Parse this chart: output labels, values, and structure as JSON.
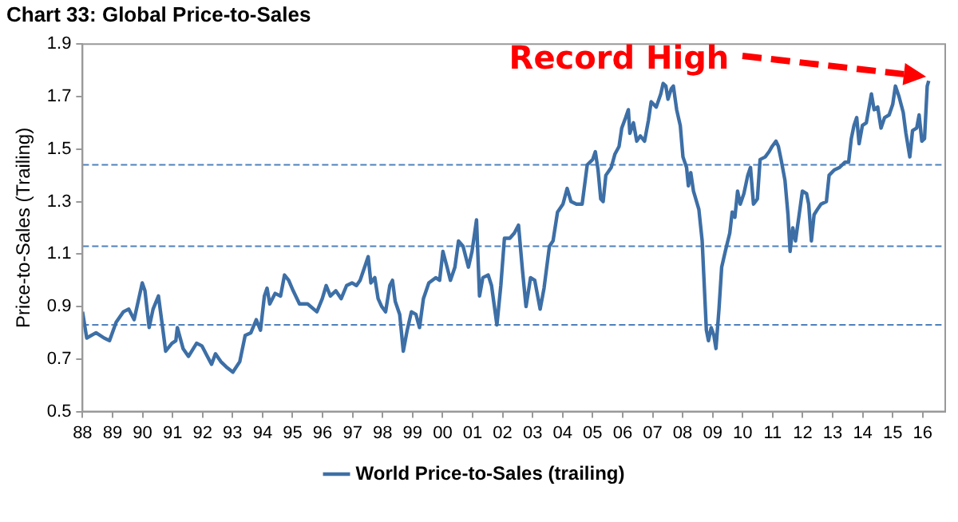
{
  "chart_data": {
    "type": "line",
    "title": "Chart 33: Global Price-to-Sales",
    "ylabel": "Price-to-Sales (Trailing)",
    "x": [
      1988.0,
      1988.14,
      1988.45,
      1988.72,
      1988.9,
      1989.12,
      1989.36,
      1989.54,
      1989.72,
      1989.99,
      1990.08,
      1990.22,
      1990.35,
      1990.53,
      1990.68,
      1990.77,
      1990.98,
      1991.11,
      1991.16,
      1991.35,
      1991.53,
      1991.8,
      1991.98,
      1992.16,
      1992.3,
      1992.43,
      1992.61,
      1992.79,
      1993.01,
      1993.24,
      1993.42,
      1993.61,
      1993.79,
      1993.93,
      1994.06,
      1994.15,
      1994.24,
      1994.42,
      1994.6,
      1994.73,
      1994.87,
      1995.02,
      1995.23,
      1995.5,
      1995.81,
      1995.99,
      1996.12,
      1996.26,
      1996.44,
      1996.62,
      1996.8,
      1996.98,
      1997.13,
      1997.25,
      1997.43,
      1997.52,
      1997.61,
      1997.74,
      1997.85,
      1997.97,
      1998.1,
      1998.24,
      1998.33,
      1998.42,
      1998.57,
      1998.69,
      1998.82,
      1998.96,
      1999.11,
      1999.23,
      1999.36,
      1999.54,
      1999.77,
      1999.9,
      2000.01,
      2000.15,
      2000.26,
      2000.41,
      2000.53,
      2000.68,
      2000.86,
      2000.98,
      2001.13,
      2001.23,
      2001.34,
      2001.52,
      2001.63,
      2001.81,
      2001.94,
      2002.06,
      2002.24,
      2002.39,
      2002.53,
      2002.66,
      2002.78,
      2002.93,
      2003.07,
      2003.25,
      2003.38,
      2003.56,
      2003.68,
      2003.83,
      2004.01,
      2004.15,
      2004.28,
      2004.46,
      2004.65,
      2004.82,
      2005.0,
      2005.09,
      2005.18,
      2005.27,
      2005.35,
      2005.44,
      2005.62,
      2005.74,
      2005.88,
      2005.97,
      2006.1,
      2006.19,
      2006.24,
      2006.36,
      2006.47,
      2006.59,
      2006.73,
      2006.86,
      2006.95,
      2007.12,
      2007.27,
      2007.35,
      2007.44,
      2007.51,
      2007.62,
      2007.69,
      2007.8,
      2007.92,
      2008.01,
      2008.13,
      2008.19,
      2008.27,
      2008.36,
      2008.54,
      2008.65,
      2008.72,
      2008.79,
      2008.86,
      2008.95,
      2009.04,
      2009.11,
      2009.21,
      2009.3,
      2009.42,
      2009.57,
      2009.65,
      2009.74,
      2009.83,
      2009.92,
      2010.04,
      2010.17,
      2010.26,
      2010.36,
      2010.49,
      2010.58,
      2010.75,
      2010.88,
      2010.98,
      2011.11,
      2011.19,
      2011.28,
      2011.41,
      2011.51,
      2011.58,
      2011.67,
      2011.76,
      2011.87,
      2011.99,
      2012.13,
      2012.2,
      2012.29,
      2012.38,
      2012.49,
      2012.61,
      2012.79,
      2012.88,
      2013.05,
      2013.23,
      2013.41,
      2013.53,
      2013.62,
      2013.71,
      2013.8,
      2013.88,
      2013.99,
      2014.12,
      2014.29,
      2014.38,
      2014.5,
      2014.61,
      2014.73,
      2014.88,
      2015.0,
      2015.09,
      2015.21,
      2015.35,
      2015.44,
      2015.57,
      2015.66,
      2015.8,
      2015.88,
      2015.97,
      2016.06,
      2016.15,
      2016.2
    ],
    "series": [
      {
        "name": "World Price-to-Sales (trailing)",
        "color": "#3d6fa6",
        "values": [
          0.88,
          0.78,
          0.8,
          0.78,
          0.77,
          0.84,
          0.88,
          0.89,
          0.85,
          0.99,
          0.96,
          0.82,
          0.89,
          0.94,
          0.81,
          0.73,
          0.76,
          0.77,
          0.82,
          0.74,
          0.71,
          0.76,
          0.75,
          0.71,
          0.68,
          0.72,
          0.69,
          0.67,
          0.65,
          0.69,
          0.79,
          0.8,
          0.85,
          0.81,
          0.94,
          0.97,
          0.91,
          0.95,
          0.94,
          1.02,
          1.0,
          0.96,
          0.91,
          0.91,
          0.88,
          0.93,
          0.98,
          0.94,
          0.96,
          0.93,
          0.98,
          0.99,
          0.98,
          1.0,
          1.06,
          1.09,
          0.99,
          1.01,
          0.93,
          0.9,
          0.88,
          0.98,
          1.0,
          0.92,
          0.87,
          0.73,
          0.81,
          0.88,
          0.87,
          0.82,
          0.93,
          0.99,
          1.01,
          1.0,
          1.11,
          1.05,
          1.0,
          1.05,
          1.15,
          1.13,
          1.05,
          1.11,
          1.23,
          0.94,
          1.01,
          1.02,
          0.98,
          0.83,
          0.98,
          1.16,
          1.16,
          1.18,
          1.21,
          1.04,
          0.9,
          1.01,
          1.0,
          0.89,
          0.97,
          1.13,
          1.15,
          1.26,
          1.29,
          1.35,
          1.3,
          1.29,
          1.29,
          1.44,
          1.46,
          1.49,
          1.42,
          1.31,
          1.3,
          1.4,
          1.43,
          1.48,
          1.51,
          1.58,
          1.62,
          1.65,
          1.56,
          1.6,
          1.53,
          1.55,
          1.53,
          1.61,
          1.68,
          1.66,
          1.71,
          1.75,
          1.74,
          1.69,
          1.73,
          1.74,
          1.65,
          1.59,
          1.47,
          1.43,
          1.36,
          1.41,
          1.34,
          1.27,
          1.15,
          0.98,
          0.81,
          0.77,
          0.82,
          0.79,
          0.74,
          0.89,
          1.05,
          1.11,
          1.18,
          1.26,
          1.24,
          1.34,
          1.29,
          1.33,
          1.4,
          1.43,
          1.29,
          1.31,
          1.46,
          1.47,
          1.49,
          1.51,
          1.53,
          1.51,
          1.46,
          1.38,
          1.25,
          1.11,
          1.2,
          1.15,
          1.24,
          1.34,
          1.33,
          1.29,
          1.15,
          1.25,
          1.27,
          1.29,
          1.3,
          1.4,
          1.42,
          1.43,
          1.45,
          1.45,
          1.54,
          1.59,
          1.62,
          1.52,
          1.59,
          1.6,
          1.71,
          1.65,
          1.66,
          1.58,
          1.62,
          1.63,
          1.67,
          1.74,
          1.7,
          1.64,
          1.56,
          1.47,
          1.57,
          1.58,
          1.63,
          1.53,
          1.54,
          1.74,
          1.76
        ]
      }
    ],
    "xlim": [
      1988,
      2016.75
    ],
    "xticks": [
      {
        "value": 1988,
        "label": "88"
      },
      {
        "value": 1989,
        "label": "89"
      },
      {
        "value": 1990,
        "label": "90"
      },
      {
        "value": 1991,
        "label": "91"
      },
      {
        "value": 1992,
        "label": "92"
      },
      {
        "value": 1993,
        "label": "93"
      },
      {
        "value": 1994,
        "label": "94"
      },
      {
        "value": 1995,
        "label": "95"
      },
      {
        "value": 1996,
        "label": "96"
      },
      {
        "value": 1997,
        "label": "97"
      },
      {
        "value": 1998,
        "label": "98"
      },
      {
        "value": 1999,
        "label": "99"
      },
      {
        "value": 2000,
        "label": "00"
      },
      {
        "value": 2001,
        "label": "01"
      },
      {
        "value": 2002,
        "label": "02"
      },
      {
        "value": 2003,
        "label": "03"
      },
      {
        "value": 2004,
        "label": "04"
      },
      {
        "value": 2005,
        "label": "05"
      },
      {
        "value": 2006,
        "label": "06"
      },
      {
        "value": 2007,
        "label": "07"
      },
      {
        "value": 2008,
        "label": "08"
      },
      {
        "value": 2009,
        "label": "09"
      },
      {
        "value": 2010,
        "label": "10"
      },
      {
        "value": 2011,
        "label": "11"
      },
      {
        "value": 2012,
        "label": "12"
      },
      {
        "value": 2013,
        "label": "13"
      },
      {
        "value": 2014,
        "label": "14"
      },
      {
        "value": 2015,
        "label": "15"
      },
      {
        "value": 2016,
        "label": "16"
      }
    ],
    "ylim": [
      0.5,
      1.9
    ],
    "yticks": [
      0.5,
      0.7,
      0.9,
      1.1,
      1.3,
      1.5,
      1.7,
      1.9
    ],
    "ref_lines": [
      {
        "axis": "y",
        "value": 1.44,
        "color": "#4f81bd",
        "line_style": "dashed"
      },
      {
        "axis": "y",
        "value": 1.13,
        "color": "#4f81bd",
        "line_style": "dashed"
      },
      {
        "axis": "y",
        "value": 0.83,
        "color": "#4f81bd",
        "line_style": "dashed"
      }
    ],
    "annotations": [
      "Record High"
    ],
    "grid": false,
    "legend": "bottom",
    "marker": "none",
    "line_style": "solid"
  }
}
